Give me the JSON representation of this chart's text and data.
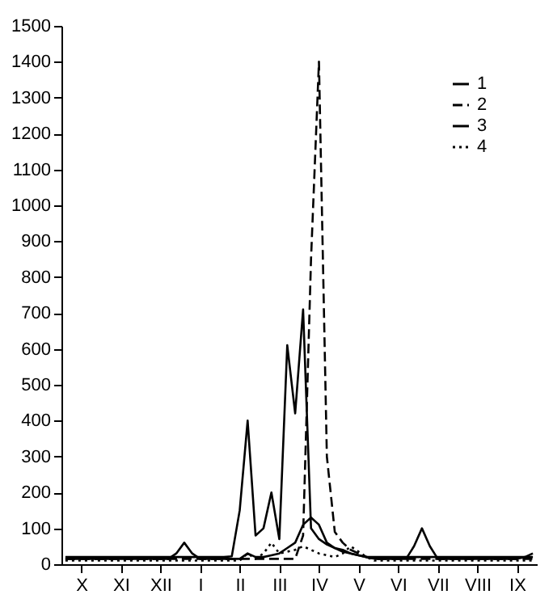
{
  "chart_data": {
    "type": "line",
    "categories": [
      null,
      null,
      "X",
      null,
      null,
      null,
      null,
      "XI",
      null,
      null,
      null,
      null,
      "XII",
      null,
      null,
      null,
      null,
      "I",
      null,
      null,
      null,
      null,
      "II",
      null,
      null,
      null,
      null,
      "III",
      null,
      null,
      null,
      null,
      "IV",
      null,
      null,
      null,
      null,
      "V",
      null,
      null,
      null,
      null,
      "VI",
      null,
      null,
      null,
      null,
      "VII",
      null,
      null,
      null,
      null,
      "VIII",
      null,
      null,
      null,
      null,
      "IX",
      null,
      null
    ],
    "ylim": [
      0,
      1500
    ],
    "yticks": [
      0,
      100,
      200,
      300,
      400,
      500,
      600,
      700,
      800,
      900,
      1000,
      1100,
      1200,
      1300,
      1400,
      1500
    ],
    "legend": "top right",
    "marker": "none",
    "series": [
      {
        "name": "1",
        "color": "#000000",
        "line_style": "solid",
        "values": [
          20,
          20,
          20,
          20,
          20,
          20,
          20,
          20,
          20,
          20,
          20,
          20,
          20,
          20,
          20,
          20,
          20,
          20,
          20,
          20,
          20,
          22,
          150,
          400,
          80,
          100,
          200,
          70,
          610,
          420,
          710,
          100,
          70,
          55,
          45,
          40,
          30,
          25,
          20,
          20,
          20,
          20,
          20,
          20,
          20,
          20,
          20,
          20,
          20,
          20,
          20,
          20,
          20,
          20,
          20,
          20,
          20,
          20,
          20,
          20
        ]
      },
      {
        "name": "2",
        "color": "#000000",
        "line_style": "dashed",
        "values": [
          15,
          15,
          15,
          15,
          15,
          15,
          15,
          15,
          15,
          15,
          15,
          15,
          15,
          15,
          15,
          15,
          15,
          15,
          15,
          15,
          15,
          15,
          15,
          15,
          15,
          15,
          15,
          15,
          15,
          15,
          80,
          850,
          1400,
          300,
          90,
          60,
          40,
          30,
          20,
          15,
          15,
          15,
          15,
          15,
          15,
          15,
          15,
          15,
          15,
          15,
          15,
          15,
          15,
          15,
          15,
          15,
          15,
          15,
          15,
          15
        ]
      },
      {
        "name": "3",
        "color": "#000000",
        "line_style": "solid",
        "values": [
          15,
          15,
          15,
          15,
          15,
          15,
          15,
          15,
          15,
          15,
          15,
          15,
          15,
          15,
          30,
          60,
          30,
          15,
          15,
          15,
          15,
          15,
          15,
          30,
          20,
          20,
          25,
          30,
          45,
          60,
          110,
          130,
          110,
          60,
          45,
          35,
          30,
          25,
          20,
          15,
          15,
          15,
          15,
          15,
          50,
          100,
          50,
          15,
          15,
          15,
          15,
          15,
          15,
          15,
          15,
          15,
          15,
          15,
          20,
          30
        ]
      },
      {
        "name": "4",
        "color": "#000000",
        "line_style": "dotted",
        "values": [
          10,
          10,
          10,
          10,
          10,
          10,
          10,
          10,
          10,
          10,
          10,
          10,
          10,
          10,
          10,
          10,
          10,
          10,
          10,
          10,
          10,
          10,
          10,
          30,
          15,
          30,
          60,
          30,
          35,
          40,
          50,
          40,
          30,
          25,
          20,
          30,
          50,
          35,
          20,
          10,
          10,
          10,
          10,
          10,
          10,
          10,
          10,
          10,
          10,
          10,
          10,
          10,
          10,
          10,
          10,
          10,
          10,
          10,
          10,
          10
        ]
      }
    ]
  }
}
